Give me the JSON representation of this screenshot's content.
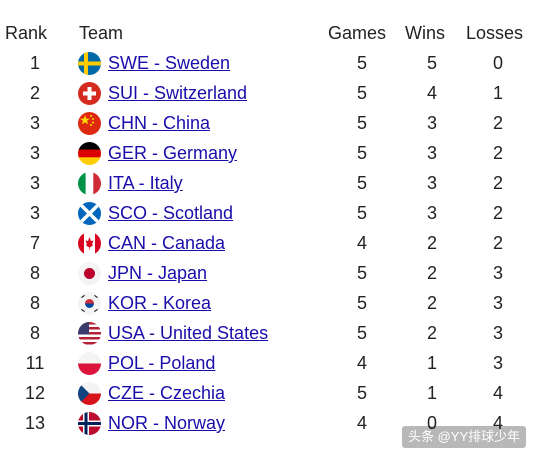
{
  "headers": {
    "rank": "Rank",
    "team": "Team",
    "games": "Games",
    "wins": "Wins",
    "losses": "Losses"
  },
  "rows": [
    {
      "rank": "1",
      "team": "SWE - Sweden",
      "games": "5",
      "wins": "5",
      "losses": "0",
      "flag": "sweden-flag-icon"
    },
    {
      "rank": "2",
      "team": "SUI - Switzerland",
      "games": "5",
      "wins": "4",
      "losses": "1",
      "flag": "switzerland-flag-icon"
    },
    {
      "rank": "3",
      "team": "CHN - China",
      "games": "5",
      "wins": "3",
      "losses": "2",
      "flag": "china-flag-icon"
    },
    {
      "rank": "3",
      "team": "GER - Germany",
      "games": "5",
      "wins": "3",
      "losses": "2",
      "flag": "germany-flag-icon"
    },
    {
      "rank": "3",
      "team": "ITA - Italy",
      "games": "5",
      "wins": "3",
      "losses": "2",
      "flag": "italy-flag-icon"
    },
    {
      "rank": "3",
      "team": "SCO - Scotland",
      "games": "5",
      "wins": "3",
      "losses": "2",
      "flag": "scotland-flag-icon"
    },
    {
      "rank": "7",
      "team": "CAN - Canada",
      "games": "4",
      "wins": "2",
      "losses": "2",
      "flag": "canada-flag-icon"
    },
    {
      "rank": "8",
      "team": "JPN - Japan",
      "games": "5",
      "wins": "2",
      "losses": "3",
      "flag": "japan-flag-icon"
    },
    {
      "rank": "8",
      "team": "KOR - Korea",
      "games": "5",
      "wins": "2",
      "losses": "3",
      "flag": "korea-flag-icon"
    },
    {
      "rank": "8",
      "team": "USA - United States",
      "games": "5",
      "wins": "2",
      "losses": "3",
      "flag": "usa-flag-icon"
    },
    {
      "rank": "11",
      "team": "POL - Poland",
      "games": "4",
      "wins": "1",
      "losses": "3",
      "flag": "poland-flag-icon"
    },
    {
      "rank": "12",
      "team": "CZE - Czechia",
      "games": "5",
      "wins": "1",
      "losses": "4",
      "flag": "czechia-flag-icon"
    },
    {
      "rank": "13",
      "team": "NOR - Norway",
      "games": "4",
      "wins": "0",
      "losses": "4",
      "flag": "norway-flag-icon"
    }
  ],
  "watermark": "头条 @YY排球少年",
  "colors": {
    "link": "#1a0dab",
    "text": "#222222"
  }
}
